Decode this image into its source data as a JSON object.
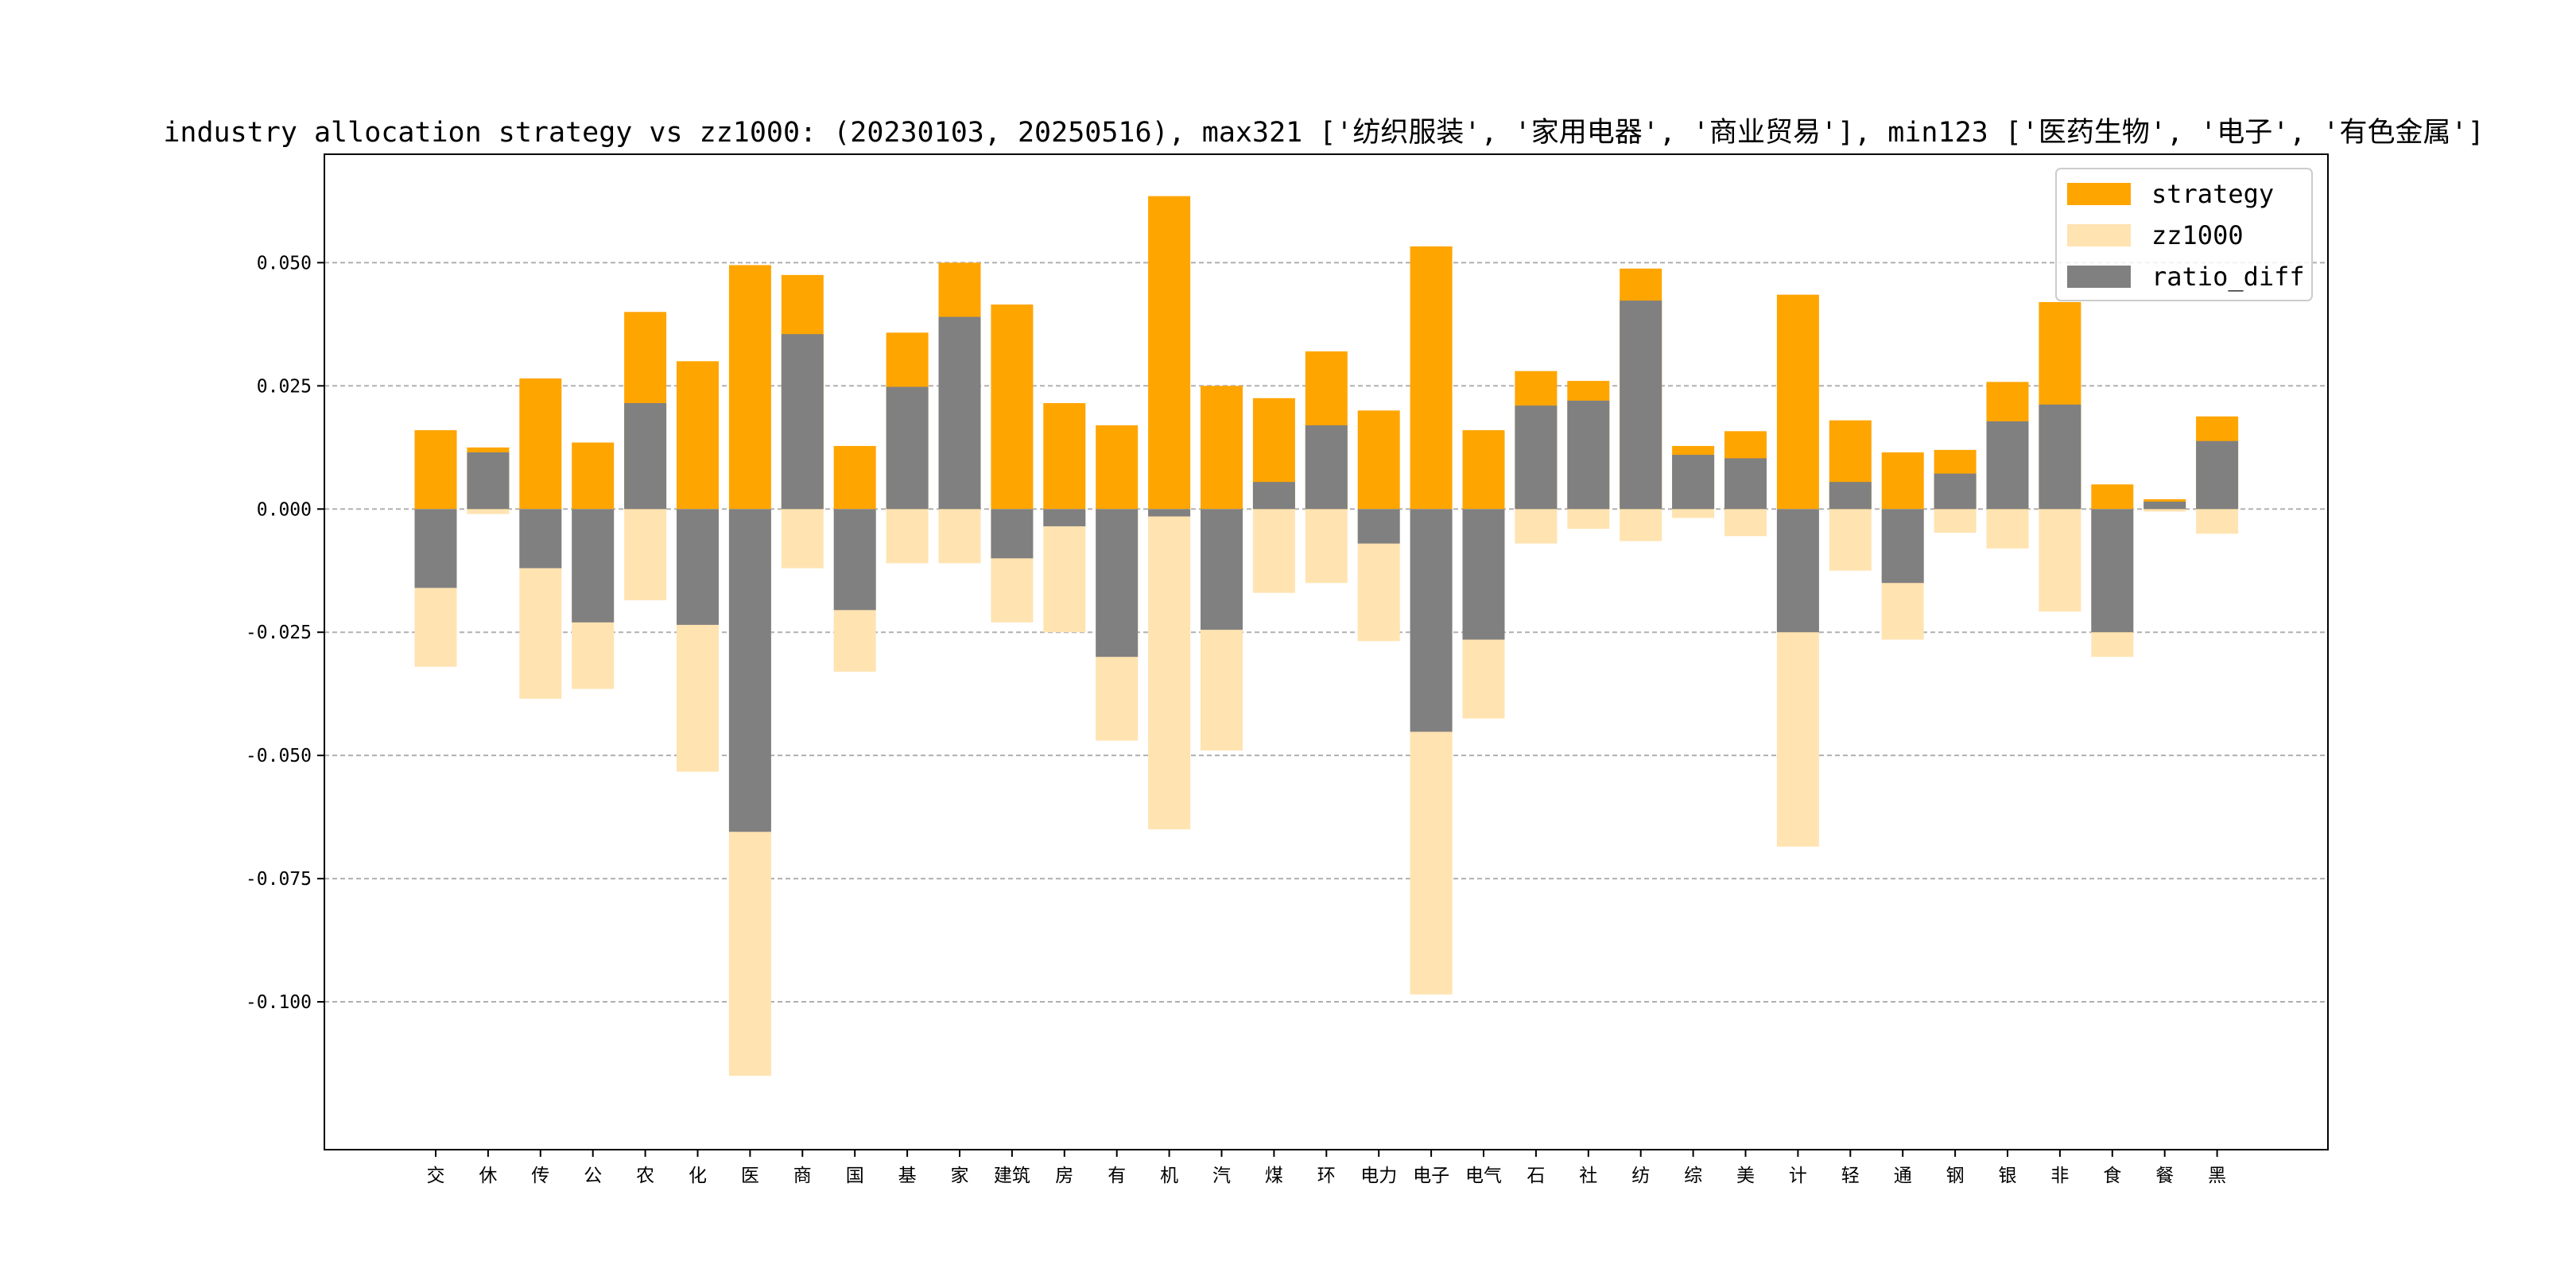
{
  "chart_data": {
    "type": "bar",
    "title": "industry allocation strategy vs zz1000: (20230103, 20250516), max321 ['纺织服装', '家用电器', '商业贸易'], min123 ['医药生物', '电子', '有色金属']",
    "xlabel": "",
    "ylabel": "",
    "ylim": [
      -0.13,
      0.072
    ],
    "yticks": [
      0.05,
      0.025,
      0.0,
      -0.025,
      -0.05,
      -0.075,
      -0.1
    ],
    "ytick_labels": [
      "0.050",
      "0.025",
      "0.000",
      "-0.025",
      "-0.050",
      "-0.075",
      "-0.100"
    ],
    "grid": "horizontal dashed",
    "legend": "top-right",
    "categories": [
      "交",
      "休",
      "传",
      "公",
      "农",
      "化",
      "医",
      "商",
      "国",
      "基",
      "家",
      "建筑",
      "房",
      "有",
      "机",
      "汽",
      "煤",
      "环",
      "电力",
      "电子",
      "电气",
      "石",
      "社",
      "纺",
      "综",
      "美",
      "计",
      "轻",
      "通",
      "钢",
      "银",
      "非",
      "食",
      "餐",
      "黑"
    ],
    "series": [
      {
        "name": "strategy",
        "color": "#FFA500",
        "values": [
          0.016,
          0.0125,
          0.0265,
          0.0135,
          0.04,
          0.03,
          0.0495,
          0.0475,
          0.0128,
          0.0358,
          0.05,
          0.0415,
          0.0215,
          0.017,
          0.0635,
          0.025,
          0.0225,
          0.032,
          0.02,
          0.0533,
          0.016,
          0.028,
          0.026,
          0.0488,
          0.0128,
          0.0158,
          0.0435,
          0.018,
          0.0115,
          0.012,
          0.0258,
          0.042,
          0.005,
          0.002,
          0.0188
        ]
      },
      {
        "name": "zz1000",
        "color": "#FFE3B1",
        "values": [
          -0.032,
          -0.001,
          -0.0385,
          -0.0365,
          -0.0185,
          -0.0533,
          -0.115,
          -0.012,
          -0.033,
          -0.011,
          -0.011,
          -0.023,
          -0.025,
          -0.047,
          -0.065,
          -0.049,
          -0.017,
          -0.015,
          -0.0268,
          -0.0985,
          -0.0425,
          -0.007,
          -0.004,
          -0.0065,
          -0.0018,
          -0.0055,
          -0.0685,
          -0.0125,
          -0.0265,
          -0.0048,
          -0.008,
          -0.0208,
          -0.03,
          -0.0005,
          -0.005
        ]
      },
      {
        "name": "ratio_diff",
        "color": "#808080",
        "values": [
          -0.016,
          0.0115,
          -0.012,
          -0.023,
          0.0215,
          -0.0235,
          -0.0655,
          0.0355,
          -0.0205,
          0.0248,
          0.039,
          -0.01,
          -0.0035,
          -0.03,
          -0.0015,
          -0.0245,
          0.0055,
          0.017,
          -0.007,
          -0.0452,
          -0.0265,
          0.021,
          0.022,
          0.0423,
          0.011,
          0.0103,
          -0.025,
          0.0055,
          -0.015,
          0.0072,
          0.0178,
          0.0212,
          -0.025,
          0.0015,
          0.0138
        ]
      }
    ]
  }
}
